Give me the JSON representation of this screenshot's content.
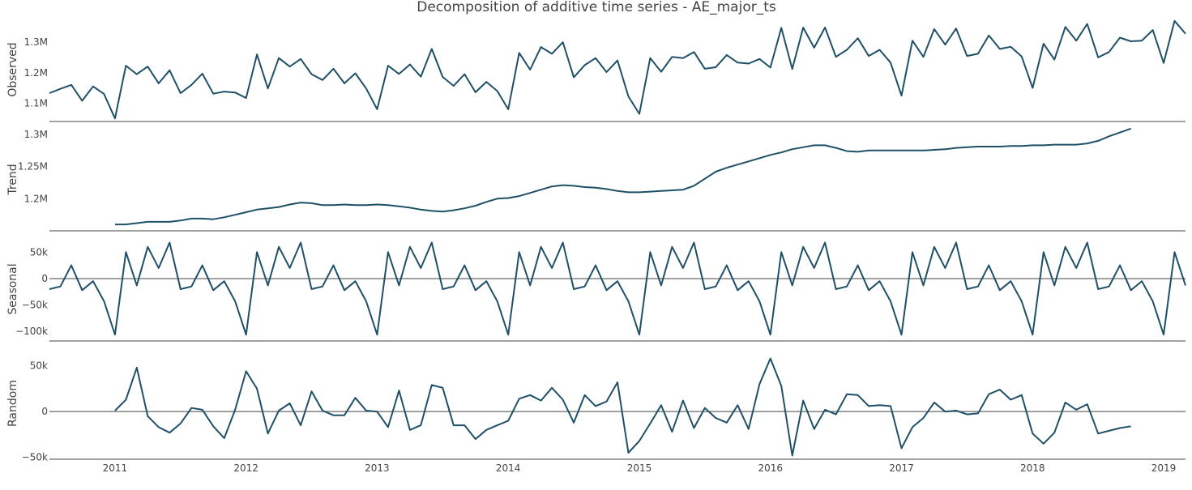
{
  "chart_data": {
    "type": "line",
    "title": "Decomposition of additive time series - AE_major_ts",
    "line_color": "#1f5068",
    "x_ticks": [
      "2011",
      "2012",
      "2013",
      "2014",
      "2015",
      "2016",
      "2017",
      "2018",
      "2019"
    ],
    "x_start": "2010-07",
    "panels": [
      {
        "name": "Observed",
        "ylabel": "Observed",
        "ylim": [
          1040000,
          1380000
        ],
        "yticks": [
          1100000,
          1200000,
          1300000
        ],
        "yticklabels": [
          "1.1M",
          "1.2M",
          "1.3M"
        ],
        "zero_line": false,
        "start_month": "2010-07",
        "values": [
          1133000,
          1147000,
          1160000,
          1108000,
          1155000,
          1130000,
          1050000,
          1223000,
          1195000,
          1220000,
          1165000,
          1208000,
          1133000,
          1160000,
          1197000,
          1131000,
          1138000,
          1135000,
          1117000,
          1260000,
          1148000,
          1248000,
          1220000,
          1245000,
          1195000,
          1176000,
          1213000,
          1165000,
          1198000,
          1148000,
          1080000,
          1223000,
          1196000,
          1227000,
          1187000,
          1278000,
          1186000,
          1157000,
          1195000,
          1136000,
          1170000,
          1140000,
          1080000,
          1265000,
          1210000,
          1284000,
          1262000,
          1300000,
          1185000,
          1225000,
          1248000,
          1202000,
          1240000,
          1122000,
          1065000,
          1248000,
          1203000,
          1252000,
          1248000,
          1268000,
          1213000,
          1218000,
          1258000,
          1233000,
          1230000,
          1245000,
          1217000,
          1347000,
          1212000,
          1348000,
          1282000,
          1348000,
          1252000,
          1275000,
          1313000,
          1255000,
          1275000,
          1233000,
          1125000,
          1305000,
          1252000,
          1343000,
          1292000,
          1345000,
          1255000,
          1262000,
          1322000,
          1278000,
          1285000,
          1253000,
          1150000,
          1295000,
          1243000,
          1350000,
          1305000,
          1360000,
          1250000,
          1268000,
          1315000,
          1303000,
          1305000,
          1340000,
          1232000,
          1370000,
          1328000
        ]
      },
      {
        "name": "Trend",
        "ylabel": "Trend",
        "ylim": [
          1150000,
          1310000
        ],
        "yticks": [
          1200000,
          1250000,
          1300000
        ],
        "yticklabels": [
          "1.2M",
          "1.25M",
          "1.3M"
        ],
        "zero_line": false,
        "start_month": "2011-01",
        "values": [
          1160000,
          1160000,
          1162000,
          1164000,
          1164000,
          1164000,
          1166000,
          1169000,
          1169000,
          1168000,
          1171000,
          1175000,
          1179000,
          1183000,
          1185000,
          1187000,
          1191000,
          1194000,
          1193000,
          1190000,
          1190000,
          1191000,
          1190000,
          1190000,
          1191000,
          1190000,
          1188000,
          1186000,
          1183000,
          1181000,
          1180000,
          1182000,
          1185000,
          1189000,
          1195000,
          1200000,
          1201000,
          1204000,
          1209000,
          1214000,
          1219000,
          1221000,
          1220000,
          1218000,
          1217000,
          1215000,
          1212000,
          1210000,
          1210000,
          1211000,
          1212000,
          1213000,
          1214000,
          1220000,
          1231000,
          1242000,
          1248000,
          1253000,
          1258000,
          1263000,
          1268000,
          1272000,
          1277000,
          1280000,
          1283000,
          1283000,
          1279000,
          1274000,
          1273000,
          1275000,
          1275000,
          1275000,
          1275000,
          1275000,
          1275000,
          1276000,
          1277000,
          1279000,
          1280000,
          1281000,
          1281000,
          1281000,
          1282000,
          1282000,
          1283000,
          1283000,
          1284000,
          1284000,
          1284000,
          1286000,
          1290000,
          1297000,
          1303000,
          1309000
        ]
      },
      {
        "name": "Seasonal",
        "ylabel": "Seasonal",
        "ylim": [
          -118000,
          78000
        ],
        "yticks": [
          50000,
          0,
          -50000,
          -100000
        ],
        "yticklabels": [
          "50k",
          "0",
          "−50k",
          "−100k"
        ],
        "zero_line": true,
        "start_month": "2010-07",
        "values": [
          -20000,
          -15000,
          25000,
          -22000,
          -5000,
          -43000,
          -106000,
          50000,
          -13000,
          60000,
          20000,
          68000,
          -20000,
          -15000,
          25000,
          -22000,
          -5000,
          -43000,
          -106000,
          50000,
          -13000,
          60000,
          20000,
          68000,
          -20000,
          -15000,
          25000,
          -22000,
          -5000,
          -43000,
          -106000,
          50000,
          -13000,
          60000,
          20000,
          68000,
          -20000,
          -15000,
          25000,
          -22000,
          -5000,
          -43000,
          -106000,
          50000,
          -13000,
          60000,
          20000,
          68000,
          -20000,
          -15000,
          25000,
          -22000,
          -5000,
          -43000,
          -106000,
          50000,
          -13000,
          60000,
          20000,
          68000,
          -20000,
          -15000,
          25000,
          -22000,
          -5000,
          -43000,
          -106000,
          50000,
          -13000,
          60000,
          20000,
          68000,
          -20000,
          -15000,
          25000,
          -22000,
          -5000,
          -43000,
          -106000,
          50000,
          -13000,
          60000,
          20000,
          68000,
          -20000,
          -15000,
          25000,
          -22000,
          -5000,
          -43000,
          -106000,
          50000,
          -13000,
          60000,
          20000,
          68000,
          -20000,
          -15000,
          25000,
          -22000,
          -5000,
          -43000,
          -106000,
          50000,
          -13000
        ]
      },
      {
        "name": "Random",
        "ylabel": "Random",
        "ylim": [
          -52000,
          70000
        ],
        "yticks": [
          50000,
          0,
          -50000
        ],
        "yticklabels": [
          "50k",
          "0",
          "−50k"
        ],
        "zero_line": true,
        "start_month": "2011-01",
        "values": [
          1000,
          13000,
          48000,
          -5000,
          -17000,
          -23000,
          -13000,
          4000,
          2000,
          -16000,
          -29000,
          2000,
          44000,
          25000,
          -24000,
          1000,
          9000,
          -15000,
          22000,
          1000,
          -4000,
          -4000,
          15000,
          1000,
          0,
          -17000,
          23000,
          -20000,
          -15000,
          29000,
          26000,
          -15000,
          -15000,
          -30000,
          -20000,
          -15000,
          -10000,
          14000,
          18000,
          12000,
          26000,
          13000,
          -12000,
          18000,
          6000,
          11000,
          32000,
          -45000,
          -32000,
          -13000,
          7000,
          -22000,
          12000,
          -18000,
          4000,
          -7000,
          -12000,
          7000,
          -19000,
          30000,
          58000,
          28000,
          -48000,
          12000,
          -19000,
          2000,
          -3000,
          19000,
          18000,
          6000,
          7000,
          6000,
          -40000,
          -17000,
          -7000,
          10000,
          0,
          1000,
          -3000,
          -2000,
          19000,
          24000,
          13000,
          18000,
          -24000,
          -35000,
          -23000,
          10000,
          2000,
          8000,
          -24000,
          -21000,
          -18000,
          -16000
        ]
      }
    ]
  }
}
